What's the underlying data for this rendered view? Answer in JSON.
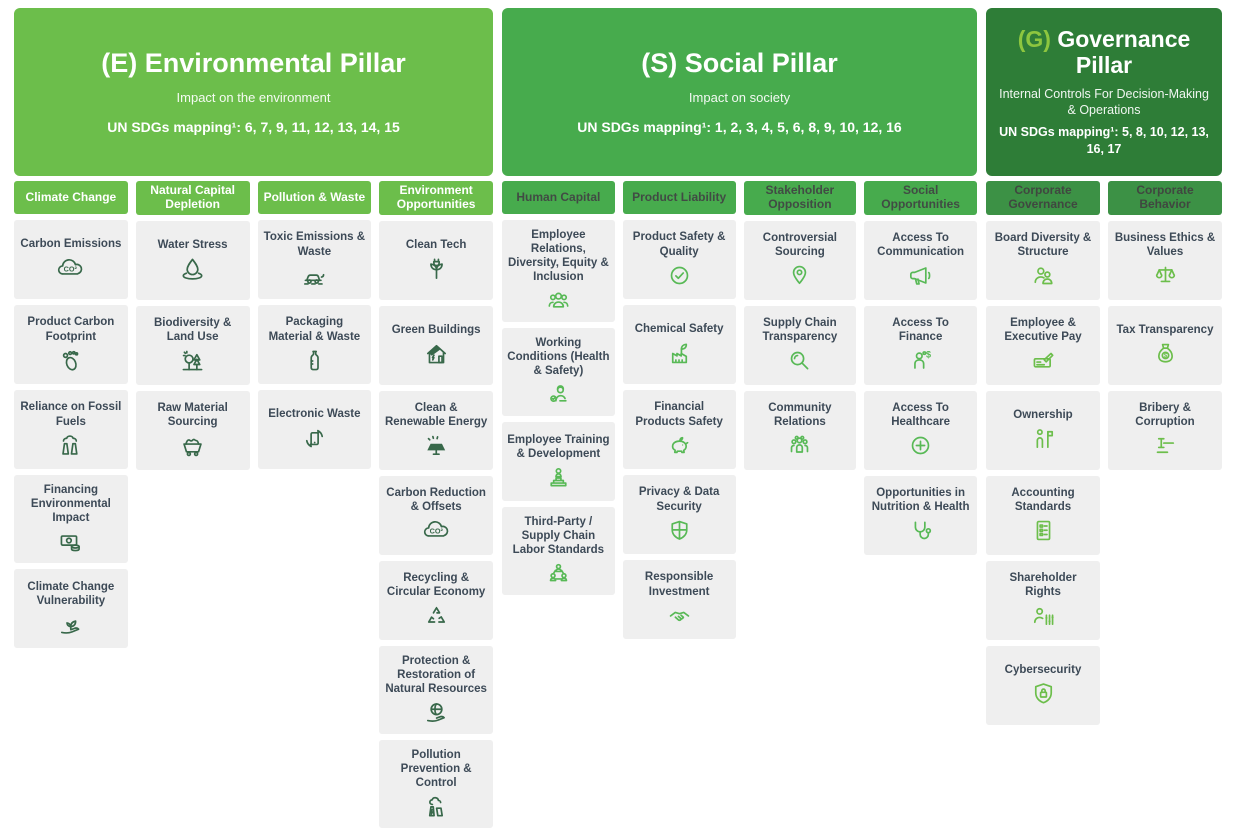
{
  "page": {
    "background": "#ffffff",
    "card_bg": "#efefef",
    "card_label_color": "#3D4A57"
  },
  "pillars": [
    {
      "id": "environmental",
      "prefix": "(E)",
      "title": "Environmental Pillar",
      "subtitle": "Impact on the environment",
      "sdg_label": "UN SDGs mapping¹:",
      "sdg_numbers": "6, 7, 9, 11, 12, 13, 14, 15",
      "colors": {
        "header_bg": "#6CBE4B",
        "prefix_color": "#FFFFFF",
        "col_header_bg": "#6CBE4B",
        "col_header_text": "#FFFFFF",
        "icon_color": "#38684A"
      },
      "columns": [
        {
          "label": "Climate Change",
          "cards": [
            {
              "label": "Carbon Emissions",
              "icon": "co2-cloud-icon"
            },
            {
              "label": "Product Carbon Footprint",
              "icon": "footprint-icon"
            },
            {
              "label": "Reliance on Fossil Fuels",
              "icon": "power-plant-icon"
            },
            {
              "label": "Financing Environmental Impact",
              "icon": "banknote-coins-icon"
            },
            {
              "label": "Climate Change Vulnerability",
              "icon": "hand-sprout-icon"
            }
          ]
        },
        {
          "label": "Natural Capital Depletion",
          "cards": [
            {
              "label": "Water Stress",
              "icon": "water-drop-icon"
            },
            {
              "label": "Biodiversity & Land Use",
              "icon": "trees-sun-icon"
            },
            {
              "label": "Raw Material Sourcing",
              "icon": "mine-cart-icon"
            }
          ]
        },
        {
          "label": "Pollution & Waste",
          "cards": [
            {
              "label": "Toxic Emissions & Waste",
              "icon": "car-exhaust-icon"
            },
            {
              "label": "Packaging Material & Waste",
              "icon": "plastic-bottle-icon"
            },
            {
              "label": "Electronic Waste",
              "icon": "phone-recycle-icon"
            }
          ]
        },
        {
          "label": "Environment Opportunities",
          "cards": [
            {
              "label": "Clean Tech",
              "icon": "plant-plug-icon"
            },
            {
              "label": "Green Buildings",
              "icon": "solar-house-icon"
            },
            {
              "label": "Clean & Renewable Energy",
              "icon": "solar-panel-icon"
            },
            {
              "label": "Carbon Reduction & Offsets",
              "icon": "co2-cloud-icon"
            },
            {
              "label": "Recycling & Circular Economy",
              "icon": "recycle-arrows-icon"
            },
            {
              "label": "Protection & Restoration of Natural Resources",
              "icon": "globe-hand-icon"
            },
            {
              "label": "Pollution Prevention & Control",
              "icon": "factory-bolt-cloud-icon"
            }
          ]
        }
      ]
    },
    {
      "id": "social",
      "prefix": "(S)",
      "title": "Social Pillar",
      "subtitle": "Impact on society",
      "sdg_label": "UN SDGs mapping¹:",
      "sdg_numbers": "1, 2, 3, 4, 5, 6, 8, 9, 10, 12, 16",
      "colors": {
        "header_bg": "#47AB4D",
        "prefix_color": "#FFFFFF",
        "col_header_bg": "#47AB4D",
        "col_header_text": "#414B44",
        "icon_color": "#58B956"
      },
      "columns": [
        {
          "label": "Human Capital",
          "cards": [
            {
              "label": "Employee Relations, Diversity, Equity & Inclusion",
              "icon": "people-group-icon"
            },
            {
              "label": "Working Conditions (Health & Safety)",
              "icon": "worker-check-icon"
            },
            {
              "label": "Employee Training & Development",
              "icon": "training-podium-icon"
            },
            {
              "label": "Third-Party / Supply Chain Labor Standards",
              "icon": "people-network-icon"
            }
          ]
        },
        {
          "label": "Product Liability",
          "cards": [
            {
              "label": "Product Safety & Quality",
              "icon": "check-circle-icon"
            },
            {
              "label": "Chemical Safety",
              "icon": "factory-leaf-icon"
            },
            {
              "label": "Financial Products Safety",
              "icon": "piggy-bank-icon"
            },
            {
              "label": "Privacy & Data Security",
              "icon": "shield-cross-icon"
            },
            {
              "label": "Responsible Investment",
              "icon": "handshake-icon"
            }
          ]
        },
        {
          "label": "Stakeholder Opposition",
          "cards": [
            {
              "label": "Controversial Sourcing",
              "icon": "map-pin-icon"
            },
            {
              "label": "Supply Chain Transparency",
              "icon": "magnifier-icon"
            },
            {
              "label": "Community Relations",
              "icon": "community-people-icon"
            }
          ]
        },
        {
          "label": "Social Opportunities",
          "cards": [
            {
              "label": "Access To Communication",
              "icon": "megaphone-icon"
            },
            {
              "label": "Access To Finance",
              "icon": "person-dollar-icon"
            },
            {
              "label": "Access To Healthcare",
              "icon": "medical-cross-icon"
            },
            {
              "label": "Opportunities in Nutrition & Health",
              "icon": "stethoscope-icon"
            }
          ]
        }
      ]
    },
    {
      "id": "governance",
      "prefix": "(G)",
      "title": "Governance Pillar",
      "subtitle": "Internal Controls For Decision-Making & Operations",
      "sdg_label": "UN SDGs mapping¹:",
      "sdg_numbers": "5, 8, 10, 12, 13, 16, 17",
      "colors": {
        "header_bg": "#2E7D37",
        "prefix_color": "#8DC63F",
        "col_header_bg": "#3C9145",
        "col_header_text": "#404740",
        "icon_color": "#6CBE4B"
      },
      "columns": [
        {
          "label": "Corporate Governance",
          "cards": [
            {
              "label": "Board Diversity & Structure",
              "icon": "two-people-icon"
            },
            {
              "label": "Employee & Executive Pay",
              "icon": "cheque-pen-icon"
            },
            {
              "label": "Ownership",
              "icon": "person-flag-icon"
            },
            {
              "label": "Accounting Standards",
              "icon": "ledger-icon"
            },
            {
              "label": "Shareholder Rights",
              "icon": "person-sliders-icon"
            },
            {
              "label": "Cybersecurity",
              "icon": "shield-lock-icon"
            }
          ]
        },
        {
          "label": "Corporate Behavior",
          "cards": [
            {
              "label": "Business Ethics & Values",
              "icon": "scales-icon"
            },
            {
              "label": "Tax Transparency",
              "icon": "money-bag-icon"
            },
            {
              "label": "Bribery & Corruption",
              "icon": "gavel-icon"
            }
          ]
        }
      ]
    }
  ]
}
